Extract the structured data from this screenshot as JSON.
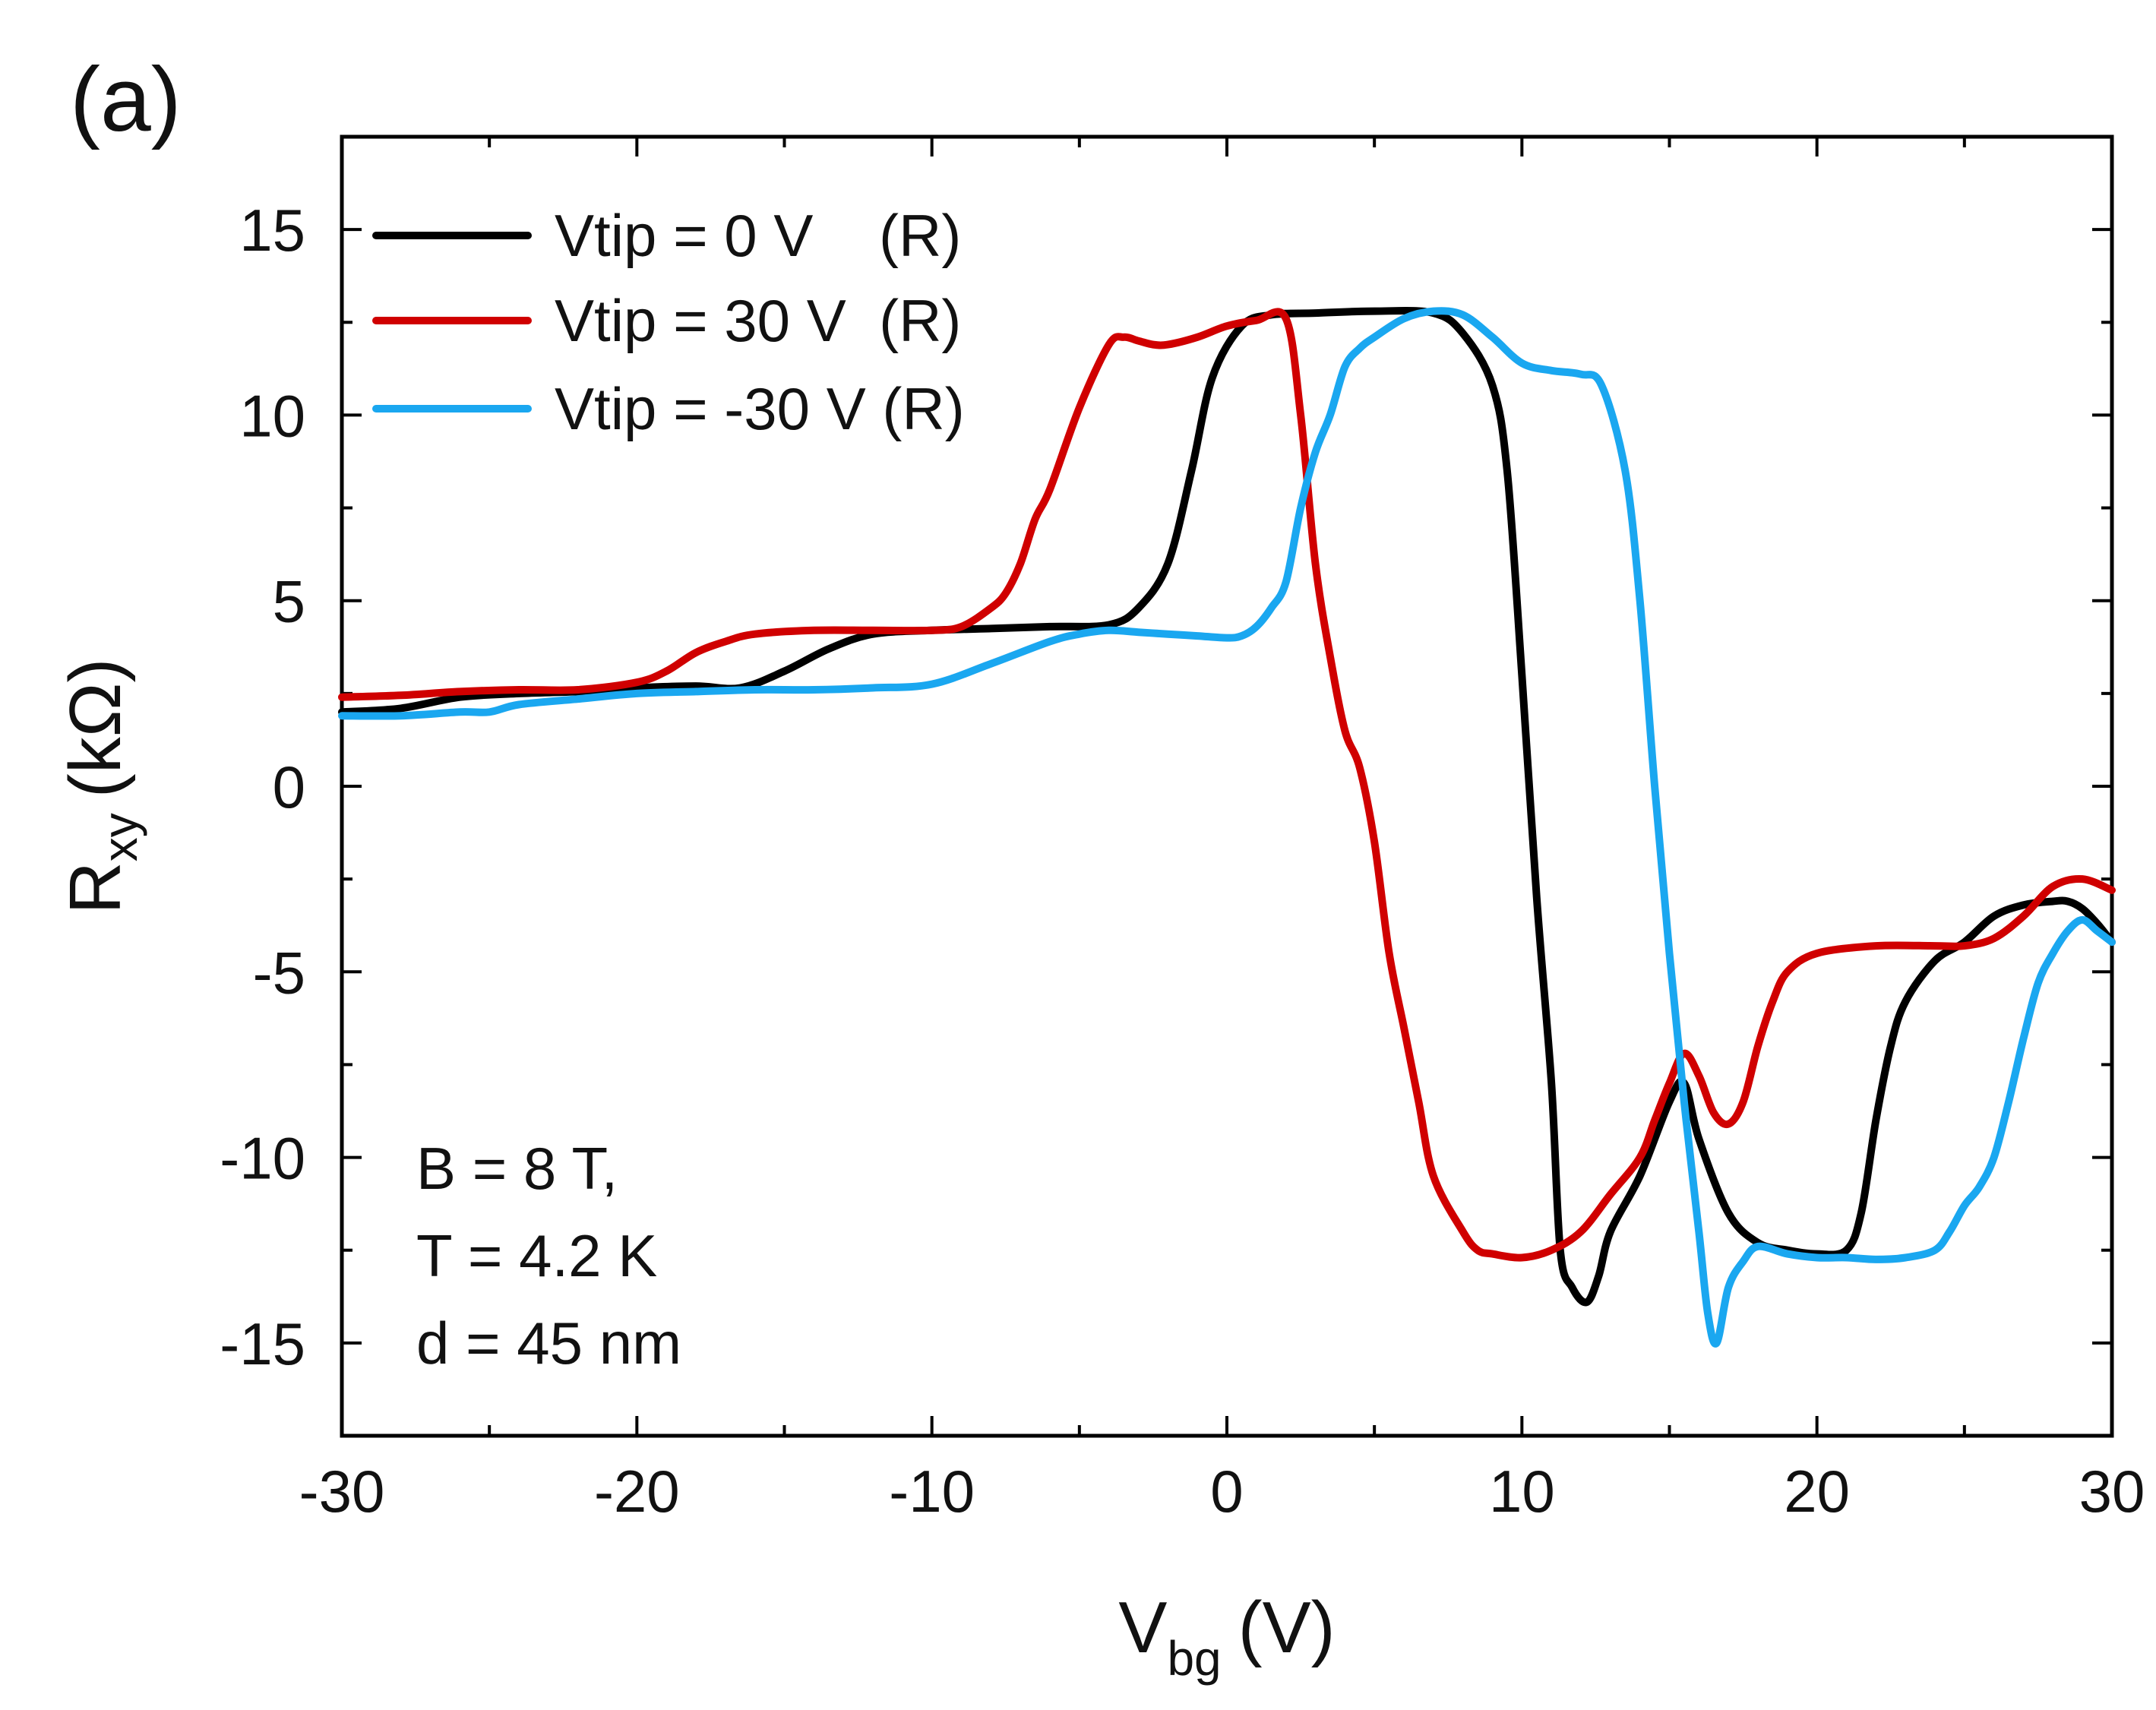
{
  "chart_data": {
    "type": "line",
    "panel_label": "(a)",
    "xlabel": {
      "main": "V",
      "sub": "bg",
      "unit": "(V)"
    },
    "ylabel": {
      "main": "R",
      "sub": "xy",
      "unit": "(kΩ)"
    },
    "xlim": [
      -30,
      30
    ],
    "ylim": [
      -17.5,
      17.5
    ],
    "xticks": [
      -30,
      -20,
      -10,
      0,
      10,
      20,
      30
    ],
    "yticks": [
      -15,
      -10,
      -5,
      0,
      5,
      10,
      15
    ],
    "legend": {
      "placement": "top-left"
    },
    "annotation": [
      "B = 8 T,",
      "T = 4.2 K",
      "d = 45 nm"
    ],
    "series": [
      {
        "name": "Vtip = 0 V    (R)",
        "color": "#000000",
        "x": [
          -30,
          -28,
          -26,
          -24,
          -22,
          -20,
          -18,
          -16.5,
          -15,
          -13.5,
          -12,
          -10,
          -8,
          -6,
          -4,
          -3,
          -2,
          -1.2,
          -0.5,
          0.5,
          1.5,
          3,
          5,
          7,
          8,
          9,
          9.5,
          10,
          10.5,
          11,
          11.3,
          11.7,
          12.2,
          12.6,
          13,
          14,
          15,
          15.5,
          16,
          17,
          18,
          19,
          20,
          21,
          21.5,
          22,
          22.5,
          23,
          24,
          25,
          26,
          27,
          28,
          28.5,
          29,
          29.5,
          30
        ],
        "y": [
          2.0,
          2.1,
          2.4,
          2.5,
          2.55,
          2.65,
          2.7,
          2.65,
          3.1,
          3.7,
          4.1,
          4.2,
          4.25,
          4.3,
          4.35,
          4.8,
          6.0,
          8.5,
          11.0,
          12.4,
          12.7,
          12.75,
          12.8,
          12.75,
          12.2,
          10.8,
          8.5,
          3.0,
          -3.0,
          -8.0,
          -12.5,
          -13.5,
          -13.9,
          -13.2,
          -12.0,
          -10.5,
          -8.5,
          -8.0,
          -9.5,
          -11.5,
          -12.3,
          -12.5,
          -12.6,
          -12.5,
          -11.5,
          -9.0,
          -7.0,
          -5.8,
          -4.7,
          -4.2,
          -3.5,
          -3.2,
          -3.1,
          -3.1,
          -3.3,
          -3.7,
          -4.2
        ]
      },
      {
        "name": "Vtip = 30 V  (R)",
        "color": "#d00000",
        "x": [
          -30,
          -28,
          -26,
          -24,
          -22,
          -20,
          -19,
          -18,
          -17,
          -16,
          -14,
          -12,
          -10,
          -9,
          -8,
          -7.5,
          -7,
          -6.5,
          -6,
          -5,
          -4,
          -3.5,
          -3,
          -2.5,
          -2,
          -1,
          0,
          1,
          2,
          2.5,
          3,
          3.5,
          4,
          4.5,
          5,
          5.5,
          6,
          6.5,
          7,
          8,
          8.5,
          9,
          10,
          11,
          12,
          13,
          14,
          14.5,
          15,
          15.5,
          16,
          16.5,
          17,
          17.5,
          18,
          18.5,
          19,
          20,
          22,
          24,
          25,
          26,
          27,
          28,
          29,
          30
        ],
        "y": [
          2.4,
          2.45,
          2.55,
          2.6,
          2.6,
          2.8,
          3.1,
          3.6,
          3.9,
          4.1,
          4.2,
          4.2,
          4.2,
          4.3,
          4.8,
          5.2,
          6.0,
          7.2,
          8.0,
          10.2,
          11.9,
          12.1,
          12.0,
          11.9,
          11.9,
          12.1,
          12.4,
          12.55,
          12.6,
          10.0,
          6.0,
          3.5,
          1.5,
          0.5,
          -1.5,
          -4.5,
          -6.5,
          -8.5,
          -10.5,
          -12.0,
          -12.5,
          -12.6,
          -12.7,
          -12.5,
          -12.0,
          -11.0,
          -10.0,
          -9.0,
          -8.0,
          -7.2,
          -7.8,
          -8.8,
          -9.1,
          -8.5,
          -7.0,
          -5.8,
          -5.0,
          -4.5,
          -4.3,
          -4.3,
          -4.3,
          -4.1,
          -3.5,
          -2.7,
          -2.5,
          -2.8
        ]
      },
      {
        "name": "Vtip = -30 V (R)",
        "color": "#1aa7f0",
        "x": [
          -30,
          -28,
          -26,
          -25,
          -24,
          -22,
          -20,
          -18,
          -16,
          -14,
          -12,
          -10,
          -8,
          -6,
          -5,
          -4,
          -3,
          -2,
          -1,
          0,
          0.5,
          1,
          1.5,
          2,
          2.5,
          3,
          3.5,
          4,
          4.5,
          5,
          6,
          7,
          8,
          9,
          10,
          11,
          12,
          12.7,
          13.5,
          14,
          14.5,
          15,
          15.5,
          16,
          16.3,
          16.6,
          17,
          17.5,
          18,
          19,
          20,
          21,
          22,
          23,
          24,
          24.5,
          25,
          25.5,
          26,
          26.5,
          27,
          27.5,
          28,
          28.5,
          29,
          29.5,
          30
        ],
        "y": [
          1.9,
          1.9,
          2.0,
          2.0,
          2.2,
          2.35,
          2.5,
          2.55,
          2.6,
          2.6,
          2.65,
          2.75,
          3.3,
          3.9,
          4.1,
          4.2,
          4.15,
          4.1,
          4.05,
          4.0,
          4.05,
          4.3,
          4.8,
          5.5,
          7.5,
          9.0,
          10.0,
          11.3,
          11.8,
          12.1,
          12.6,
          12.8,
          12.7,
          12.1,
          11.4,
          11.2,
          11.1,
          10.8,
          8.5,
          5.0,
          0.0,
          -4.5,
          -8.5,
          -12.0,
          -14.2,
          -15.0,
          -13.5,
          -12.8,
          -12.4,
          -12.6,
          -12.7,
          -12.7,
          -12.75,
          -12.7,
          -12.5,
          -12.0,
          -11.3,
          -10.8,
          -10.0,
          -8.5,
          -6.8,
          -5.3,
          -4.5,
          -3.9,
          -3.6,
          -3.9,
          -4.2
        ]
      }
    ]
  }
}
